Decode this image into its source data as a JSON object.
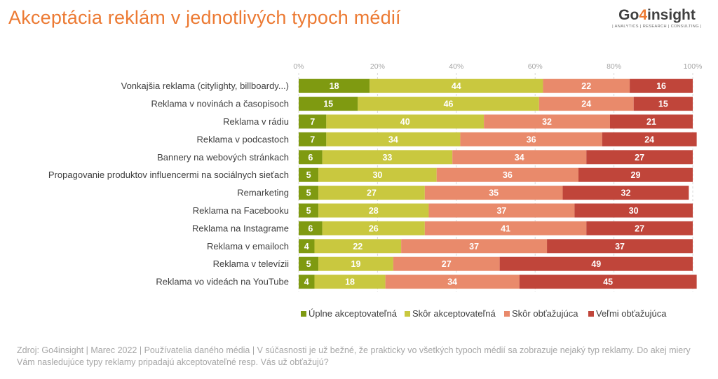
{
  "page": {
    "title": "Akceptácia reklám v jednotlivých typoch médií",
    "logo": {
      "name_part1": "Go",
      "name_accent": "4",
      "name_part2": "insight",
      "tagline": "| ANALYTICS | RESEARCH | CONSULTING |"
    },
    "footnote": "Zdroj:  Go4insight | Marec 2022 | Používatelia daného média | V súčasnosti je už bežné, že prakticky vo všetkých typoch médií  sa zobrazuje nejaký typ reklamy. Do akej miery Vám nasledujúce typy reklamy pripadajú  akceptovateľné resp. Vás už obťažujú?"
  },
  "chart_data": {
    "type": "bar",
    "orientation": "horizontal",
    "stacked": true,
    "x_ticks": [
      "0%",
      "20%",
      "40%",
      "60%",
      "80%",
      "100%"
    ],
    "xlim": [
      0,
      100
    ],
    "grid": true,
    "legend_position": "bottom",
    "categories": [
      "Vonkajšia reklama (citylighty, billboardy...)",
      "Reklama v novinách a časopisoch",
      "Reklama v rádiu",
      "Reklama v podcastoch",
      "Bannery na webových stránkach",
      "Propagovanie produktov influencermi na sociálnych sieťach",
      "Remarketing",
      "Reklama na Facebooku",
      "Reklama na Instagrame",
      "Reklama v emailoch",
      "Reklama v televízii",
      "Reklama vo videách na YouTube"
    ],
    "series": [
      {
        "name": "Úplne akceptovateľná",
        "color": "#7f9a11",
        "values": [
          18,
          15,
          7,
          7,
          6,
          5,
          5,
          5,
          6,
          4,
          5,
          4
        ]
      },
      {
        "name": "Skôr akceptovateľná",
        "color": "#c9c83f",
        "values": [
          44,
          46,
          40,
          34,
          33,
          30,
          27,
          28,
          26,
          22,
          19,
          18
        ]
      },
      {
        "name": "Skôr obťažujúca",
        "color": "#e98a6b",
        "values": [
          22,
          24,
          32,
          36,
          34,
          36,
          35,
          37,
          41,
          37,
          27,
          34
        ]
      },
      {
        "name": "Veľmi obťažujúca",
        "color": "#c0453a",
        "values": [
          16,
          15,
          21,
          24,
          27,
          29,
          32,
          30,
          27,
          37,
          49,
          45
        ]
      }
    ]
  }
}
